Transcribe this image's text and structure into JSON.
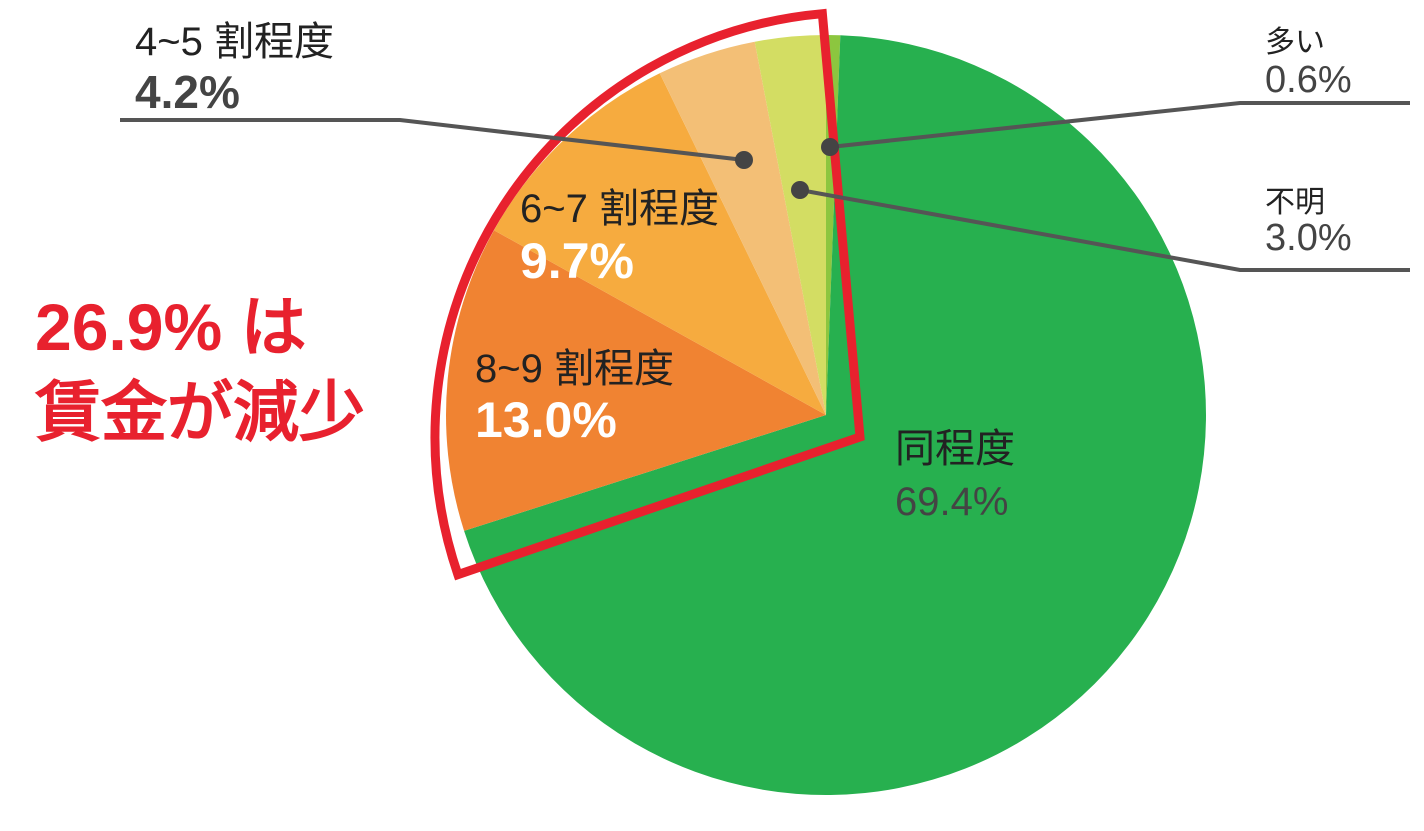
{
  "chart_data": {
    "type": "pie",
    "categories": [
      "多い",
      "同程度",
      "8~9 割程度",
      "6~7 割程度",
      "4~5 割程度",
      "不明"
    ],
    "values": [
      0.6,
      69.4,
      13.0,
      9.7,
      4.2,
      3.0
    ],
    "value_labels": [
      "0.6%",
      "69.4%",
      "13.0%",
      "9.7%",
      "4.2%",
      "3.0%"
    ],
    "colors": [
      "#8cc63f",
      "#27b04f",
      "#f08332",
      "#f6ab3f",
      "#f3bf76",
      "#d3dd63"
    ],
    "annotation": [
      "26.9% は",
      "賃金が減少"
    ]
  }
}
